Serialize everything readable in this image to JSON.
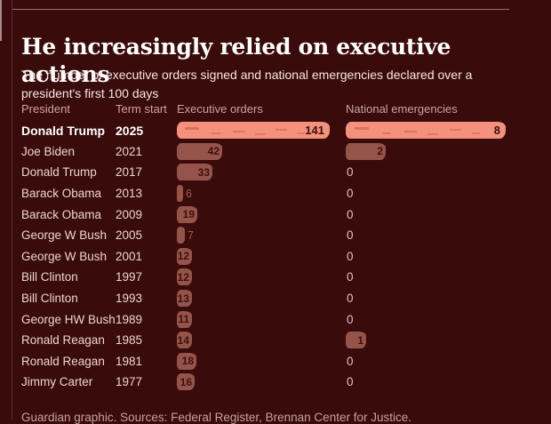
{
  "page": {
    "title": "He increasingly relied on executive actions",
    "subtitle": "The number of executive orders signed and national emergencies declared over a president's first 100 days",
    "footer": "Guardian graphic. Sources: Federal Register, Brennan Center for Justice."
  },
  "table_headers": {
    "president": "President",
    "term_start": "Term start",
    "executive_orders": "Executive orders",
    "national_emergencies": "National emergencies"
  },
  "rows": [
    {
      "president": "Donald Trump",
      "term_start": "2025",
      "executive_orders": 141,
      "national_emergencies": 8,
      "highlight": true
    },
    {
      "president": "Joe Biden",
      "term_start": "2021",
      "executive_orders": 42,
      "national_emergencies": 2,
      "highlight": false
    },
    {
      "president": "Donald Trump",
      "term_start": "2017",
      "executive_orders": 33,
      "national_emergencies": 0,
      "highlight": false
    },
    {
      "president": "Barack Obama",
      "term_start": "2013",
      "executive_orders": 6,
      "national_emergencies": 0,
      "highlight": false
    },
    {
      "president": "Barack Obama",
      "term_start": "2009",
      "executive_orders": 19,
      "national_emergencies": 0,
      "highlight": false
    },
    {
      "president": "George W Bush",
      "term_start": "2005",
      "executive_orders": 7,
      "national_emergencies": 0,
      "highlight": false
    },
    {
      "president": "George W Bush",
      "term_start": "2001",
      "executive_orders": 12,
      "national_emergencies": 0,
      "highlight": false
    },
    {
      "president": "Bill Clinton",
      "term_start": "1997",
      "executive_orders": 12,
      "national_emergencies": 0,
      "highlight": false
    },
    {
      "president": "Bill Clinton",
      "term_start": "1993",
      "executive_orders": 13,
      "national_emergencies": 0,
      "highlight": false
    },
    {
      "president": "George HW Bush",
      "term_start": "1989",
      "executive_orders": 11,
      "national_emergencies": 0,
      "highlight": false
    },
    {
      "president": "Ronald Reagan",
      "term_start": "1985",
      "executive_orders": 14,
      "national_emergencies": 1,
      "highlight": false
    },
    {
      "president": "Ronald Reagan",
      "term_start": "1981",
      "executive_orders": 18,
      "national_emergencies": 0,
      "highlight": false
    },
    {
      "president": "Jimmy Carter",
      "term_start": "1977",
      "executive_orders": 16,
      "national_emergencies": 0,
      "highlight": false
    }
  ],
  "chart_data": {
    "type": "bar",
    "orientation": "horizontal",
    "title": "He increasingly relied on executive actions",
    "subtitle": "The number of executive orders signed and national emergencies declared over a president's first 100 days",
    "categories": [
      "Donald Trump 2025",
      "Joe Biden 2021",
      "Donald Trump 2017",
      "Barack Obama 2013",
      "Barack Obama 2009",
      "George W Bush 2005",
      "George W Bush 2001",
      "Bill Clinton 1997",
      "Bill Clinton 1993",
      "George HW Bush 1989",
      "Ronald Reagan 1985",
      "Ronald Reagan 1981",
      "Jimmy Carter 1977"
    ],
    "series": [
      {
        "name": "Executive orders",
        "values": [
          141,
          42,
          33,
          6,
          19,
          7,
          12,
          12,
          13,
          11,
          14,
          18,
          16
        ],
        "xlim": [
          0,
          141
        ]
      },
      {
        "name": "National emergencies",
        "values": [
          8,
          2,
          0,
          0,
          0,
          0,
          0,
          0,
          0,
          0,
          1,
          0,
          0
        ],
        "xlim": [
          0,
          8
        ]
      }
    ],
    "highlighted_category": "Donald Trump 2025",
    "grid": false,
    "legend_position": "column-headers"
  },
  "colors": {
    "background": "#3A0B0B",
    "highlight_bar": "#F4917D",
    "muted_bar": "#95544A",
    "bar_label_dark": "#3E100D",
    "outside_label": "#A35B4D",
    "title_text": "#FFFFFF",
    "header_text": "#C9A59E",
    "row_text": "#EBD6CF",
    "footer_text": "#C5A29B"
  }
}
